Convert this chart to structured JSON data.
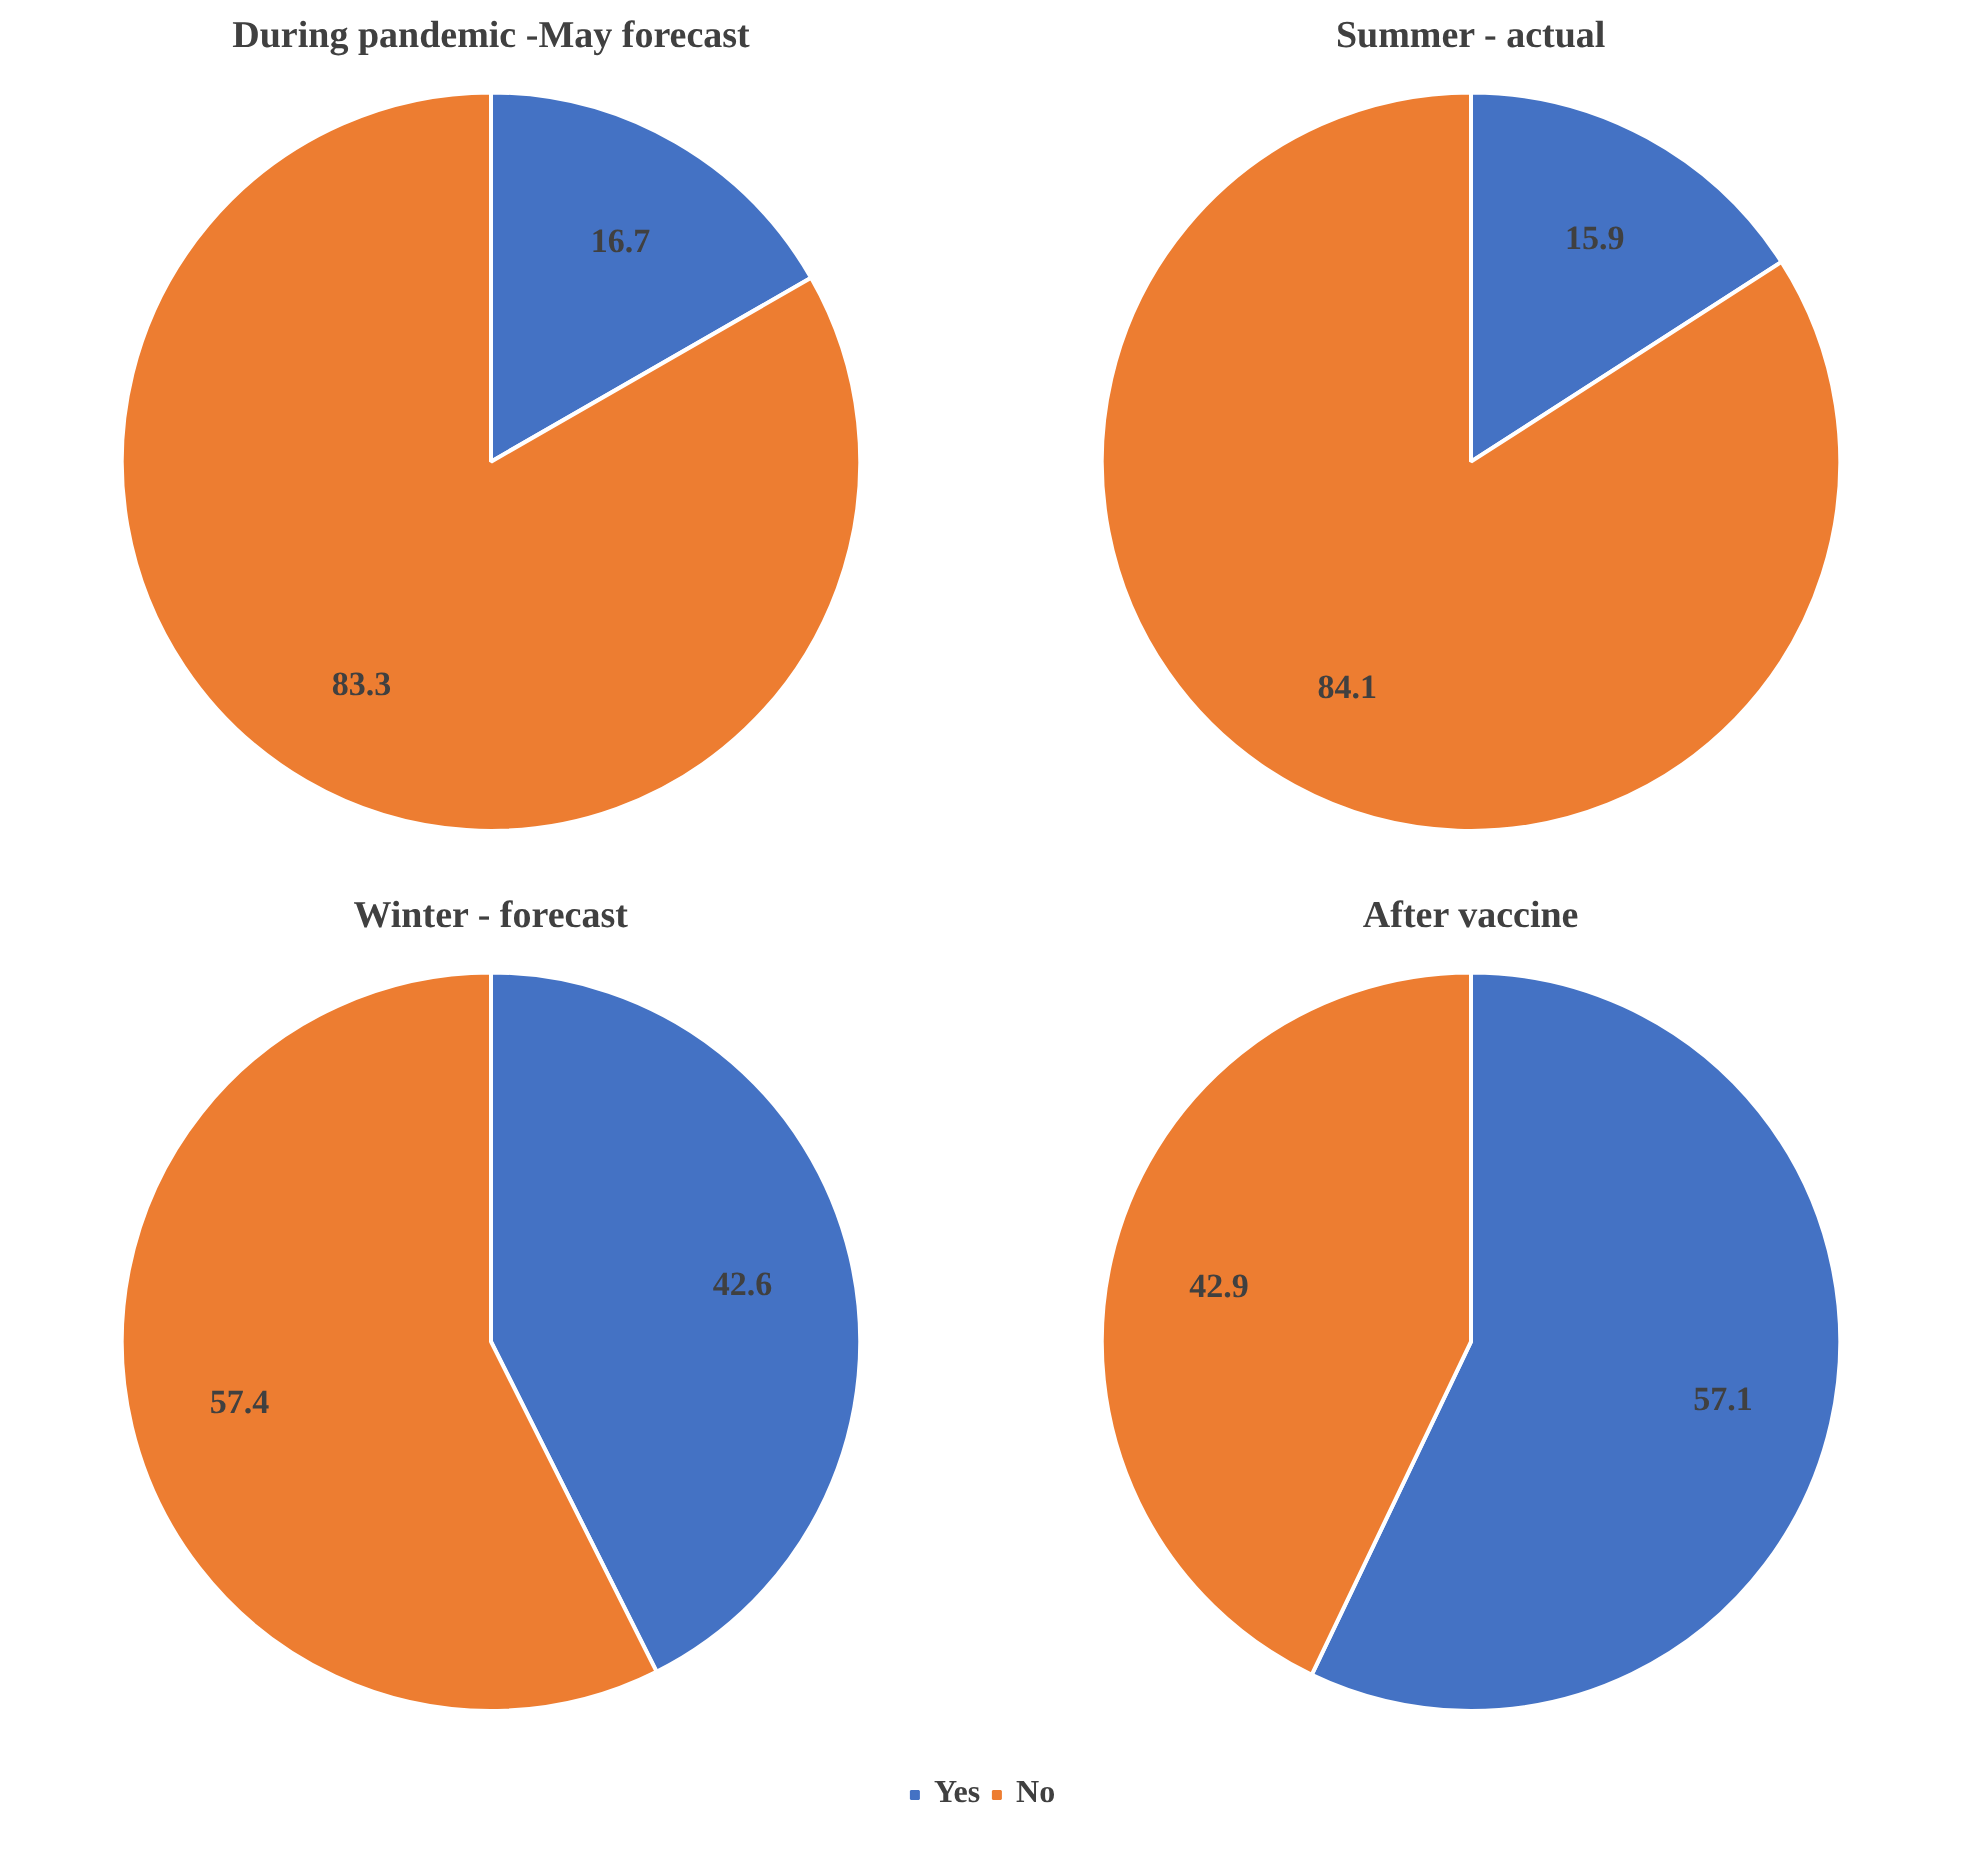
{
  "chart_data": [
    {
      "type": "pie",
      "title": "During pandemic -May forecast",
      "categories": [
        "Yes",
        "No"
      ],
      "values": [
        16.7,
        83.3
      ],
      "colors": [
        "#4472c4",
        "#ed7d31"
      ],
      "data_labels": true,
      "legend": "bottom"
    },
    {
      "type": "pie",
      "title": "Summer - actual",
      "categories": [
        null,
        null
      ],
      "values": [
        15.9,
        84.1
      ],
      "colors": [
        "#4472c4",
        "#ed7d31"
      ],
      "data_labels": true
    },
    {
      "type": "pie",
      "title": "Winter - forecast",
      "categories": [
        null,
        null
      ],
      "values": [
        42.6,
        57.4
      ],
      "colors": [
        "#4472c4",
        "#ed7d31"
      ],
      "data_labels": true
    },
    {
      "type": "pie",
      "title": "After vaccine",
      "categories": [
        null,
        null
      ],
      "values": [
        57.1,
        42.9
      ],
      "colors": [
        "#4472c4",
        "#ed7d31"
      ],
      "data_labels": true
    }
  ]
}
